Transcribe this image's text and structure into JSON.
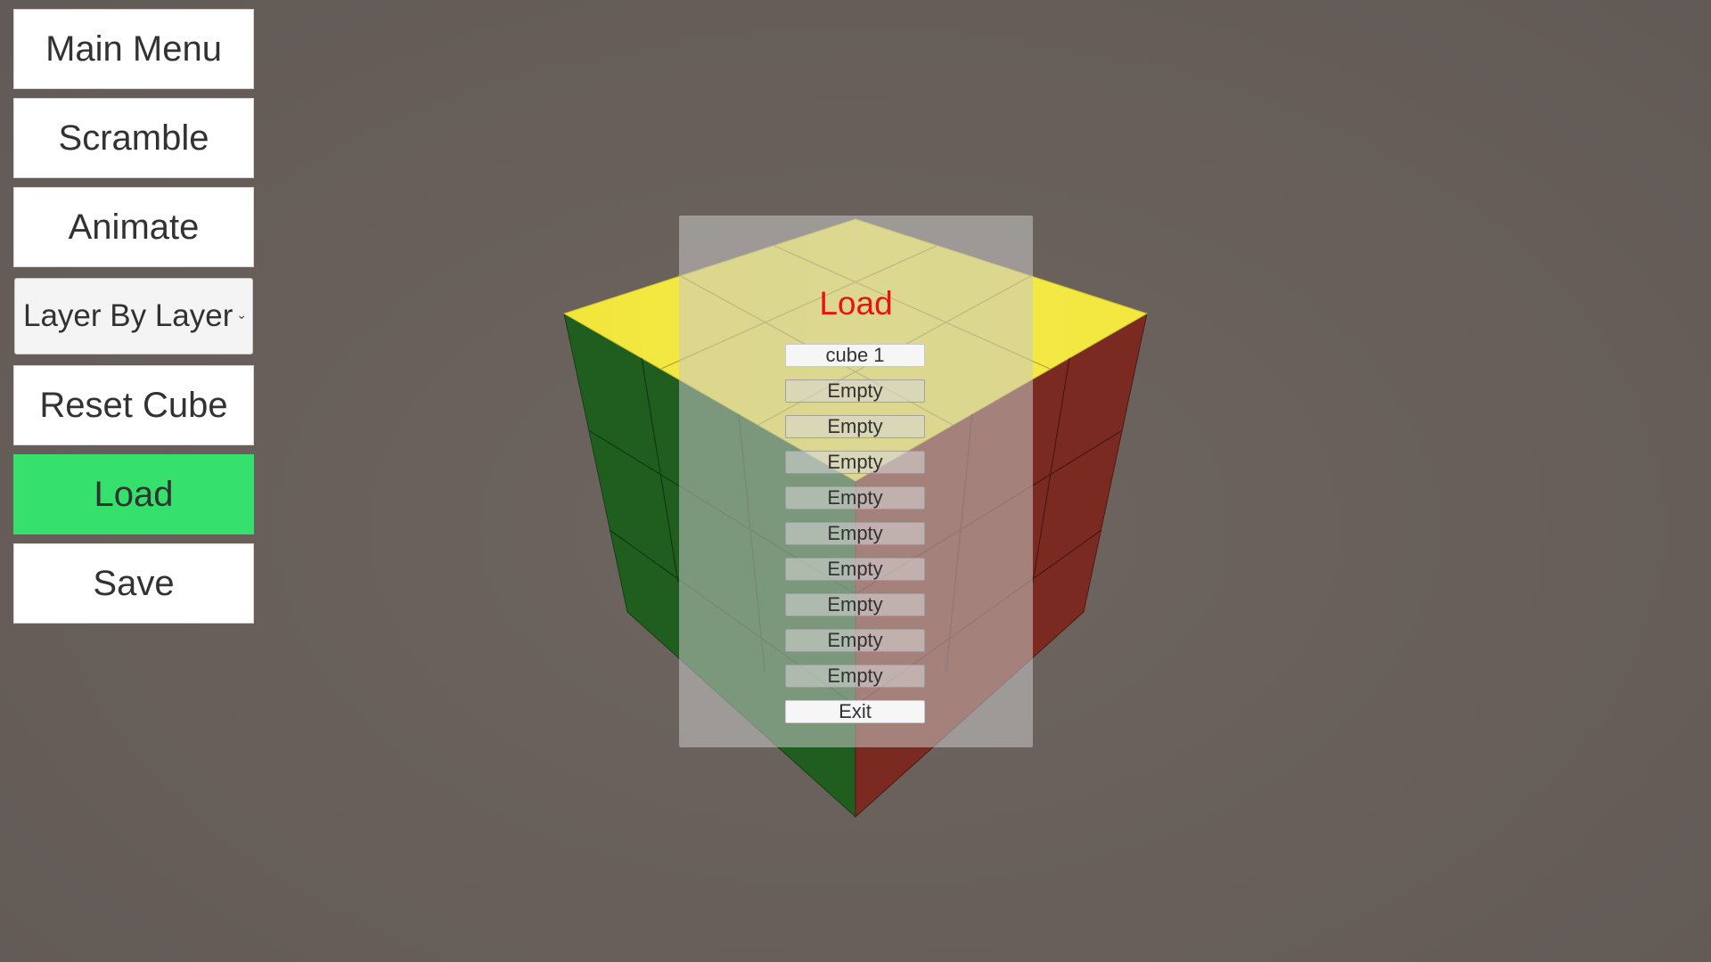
{
  "sidebar": {
    "main_menu": "Main Menu",
    "scramble": "Scramble",
    "animate": "Animate",
    "method": {
      "selected": "Layer By Layer",
      "chevron_icon": "chevron-down-icon"
    },
    "reset_cube": "Reset Cube",
    "load": "Load",
    "save": "Save",
    "active_color": "#36e06c"
  },
  "load_panel": {
    "title": "Load",
    "title_color": "#ee1111",
    "slots": [
      "cube 1",
      "Empty",
      "Empty",
      "Empty",
      "Empty",
      "Empty",
      "Empty",
      "Empty",
      "Empty",
      "Empty"
    ],
    "exit": "Exit"
  },
  "cube": {
    "top_color": "#f2e63a",
    "left_color": "#1e5e1e",
    "right_color": "#7a2a20",
    "background_color": "#675e59"
  }
}
